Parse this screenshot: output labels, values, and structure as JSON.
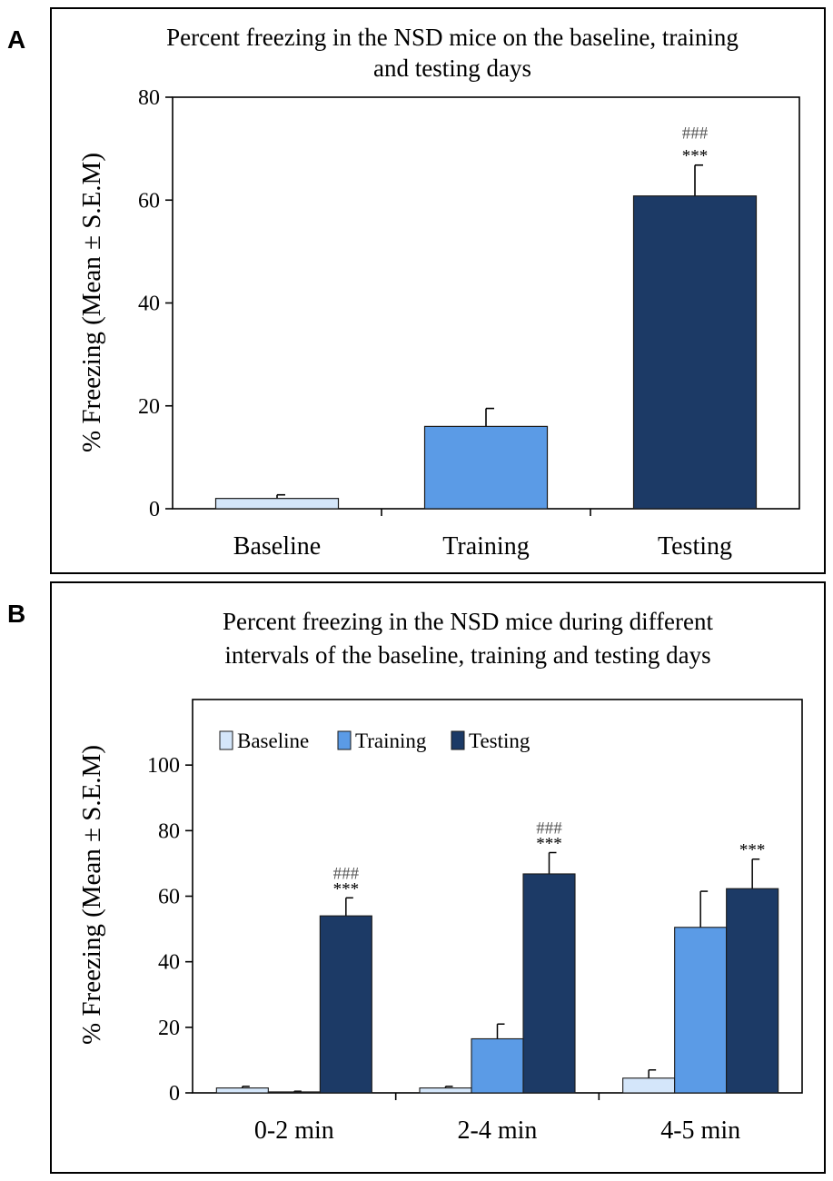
{
  "panels": [
    {
      "letter": "A",
      "chart_data": {
        "type": "bar",
        "title_lines": [
          "Percent freezing in the NSD mice on the baseline, training",
          "and testing days"
        ],
        "xlabel": "",
        "ylabel": "% Freezing (Mean ± S.E.M)",
        "ylim": [
          0,
          80
        ],
        "yticks": [
          0,
          20,
          40,
          60,
          80
        ],
        "grid": false,
        "categories": [
          "Baseline",
          "Training",
          "Testing"
        ],
        "values": [
          2,
          16,
          60.8
        ],
        "errors": [
          0.7,
          3.5,
          6.0
        ],
        "colors": [
          "#d4e6fa",
          "#5b9be6",
          "#1c3a66"
        ],
        "annotations": [
          {
            "category": "Testing",
            "stars": "***",
            "hashes": "###"
          }
        ]
      }
    },
    {
      "letter": "B",
      "chart_data": {
        "type": "bar",
        "title_lines": [
          "Percent freezing in the NSD mice during different",
          "intervals of the baseline, training and testing days"
        ],
        "xlabel": "",
        "ylabel": "% Freezing (Mean ± S.E.M)",
        "ylim": [
          0,
          120
        ],
        "yticks": [
          0,
          20,
          40,
          60,
          80,
          100
        ],
        "grid": false,
        "legend_position": "top-left",
        "categories": [
          "0-2 min",
          "2-4 min",
          "4-5 min"
        ],
        "series": [
          {
            "name": "Baseline",
            "color": "#d4e6fa",
            "values": [
              1.5,
              1.5,
              4.5
            ],
            "errors": [
              0.5,
              0.5,
              2.5
            ]
          },
          {
            "name": "Training",
            "color": "#5b9be6",
            "values": [
              0.3,
              16.5,
              50.5
            ],
            "errors": [
              0.2,
              4.5,
              11.0
            ]
          },
          {
            "name": "Testing",
            "color": "#1c3a66",
            "values": [
              54,
              66.8,
              62.3
            ],
            "errors": [
              5.5,
              6.5,
              9.0
            ]
          }
        ],
        "annotations": [
          {
            "category": "0-2 min",
            "series": "Testing",
            "stars": "***",
            "hashes": "###"
          },
          {
            "category": "2-4 min",
            "series": "Testing",
            "stars": "***",
            "hashes": "###"
          },
          {
            "category": "4-5 min",
            "series": "Testing",
            "stars": "***",
            "hashes": ""
          }
        ]
      }
    }
  ]
}
